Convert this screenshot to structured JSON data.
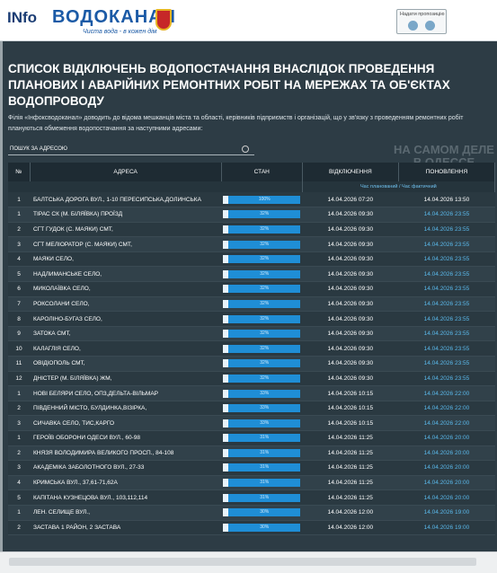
{
  "header": {
    "logo": "INfo",
    "brand": "ВОДОКАНАЛ",
    "slogan": "Чиста вода - в кожен дім",
    "offer": "Надати пропозицію"
  },
  "title": "СПИСОК ВІДКЛЮЧЕНЬ ВОДОПОСТАЧАННЯ ВНАСЛІДОК ПРОВЕДЕННЯ ПЛАНОВИХ І АВАРІЙНИХ РЕМОНТНИХ РОБІТ НА МЕРЕЖАХ ТА ОБ'ЄКТАХ ВОДОПРОВОДУ",
  "intro": "Філія «Інфоксводоканал» доводить до відома мешканців міста та області, керівників підприємств і організацій, що у зв'язку з проведенням ремонтних робіт плануються обмеження водопостачання за наступними адресами:",
  "search": "ПОШУК ЗА АДРЕСОЮ",
  "watermark": "НА САМОМ ДЕЛЕ В ОДЕССЕ",
  "table": {
    "columns": [
      "№",
      "АДРЕСА",
      "СТАН",
      "ВІДКЛЮЧЕННЯ",
      "ПОНОВЛЕННЯ"
    ],
    "subheader": "Час планований / Час фактичний",
    "rows": [
      [
        "1",
        "БАЛТСЬКА ДОРОГА ВУЛ., 1-10 ПЕРЕСИПСЬКА,ДОЛИНСЬКА",
        "100%",
        "14.04.2026 07:20",
        "14.04.2026 13:50"
      ],
      [
        "1",
        "ТІРАС СК (М. БІЛЯЇВКА) ПРОЇЗД",
        "32%",
        "14.04.2026 09:30",
        "14.04.2026 23:55"
      ],
      [
        "2",
        "СГТ ГУДОК (С. МАЯКИ) СМТ,",
        "32%",
        "14.04.2026 09:30",
        "14.04.2026 23:55"
      ],
      [
        "3",
        "СГТ МЕЛІОРАТОР (С. МАЯКИ) СМТ,",
        "32%",
        "14.04.2026 09:30",
        "14.04.2026 23:55"
      ],
      [
        "4",
        "МАЯКИ СЕЛО,",
        "32%",
        "14.04.2026 09:30",
        "14.04.2026 23:55"
      ],
      [
        "5",
        "НАДЛИМАНСЬКЕ СЕЛО,",
        "32%",
        "14.04.2026 09:30",
        "14.04.2026 23:55"
      ],
      [
        "6",
        "МИКОЛАЇВКА СЕЛО,",
        "32%",
        "14.04.2026 09:30",
        "14.04.2026 23:55"
      ],
      [
        "7",
        "РОКСОЛАНИ СЕЛО,",
        "32%",
        "14.04.2026 09:30",
        "14.04.2026 23:55"
      ],
      [
        "8",
        "КАРОЛІНО-БУГАЗ СЕЛО,",
        "32%",
        "14.04.2026 09:30",
        "14.04.2026 23:55"
      ],
      [
        "9",
        "ЗАТОКА СМТ,",
        "32%",
        "14.04.2026 09:30",
        "14.04.2026 23:55"
      ],
      [
        "10",
        "КАЛАГЛІЯ СЕЛО,",
        "32%",
        "14.04.2026 09:30",
        "14.04.2026 23:55"
      ],
      [
        "11",
        "ОВІДІОПОЛЬ СМТ,",
        "32%",
        "14.04.2026 09:30",
        "14.04.2026 23:55"
      ],
      [
        "12",
        "ДНІСТЕР (М. БІЛЯЇВКА) ЖМ,",
        "32%",
        "14.04.2026 09:30",
        "14.04.2026 23:55"
      ],
      [
        "1",
        "НОВІ БЕЛЯРИ СЕЛО, ОПЗ,ДЕЛЬТА-ВІЛЬМАР",
        "33%",
        "14.04.2026 10:15",
        "14.04.2026 22:00"
      ],
      [
        "2",
        "ПІВДЕННИЙ МІСТО, БУЛДИНКА,ВІЗІРКА,",
        "33%",
        "14.04.2026 10:15",
        "14.04.2026 22:00"
      ],
      [
        "3",
        "СИЧАВКА СЕЛО, ТИС,КАРГО",
        "33%",
        "14.04.2026 10:15",
        "14.04.2026 22:00"
      ],
      [
        "1",
        "ГЕРОЇВ ОБОРОНИ ОДЕСИ ВУЛ., 60-98",
        "31%",
        "14.04.2026 11:25",
        "14.04.2026 20:00"
      ],
      [
        "2",
        "КНЯЗЯ ВОЛОДИМИРА ВЕЛИКОГО ПРОСП., 84-108",
        "31%",
        "14.04.2026 11:25",
        "14.04.2026 20:00"
      ],
      [
        "3",
        "АКАДЕМІКА ЗАБОЛОТНОГО ВУЛ., 27-33",
        "31%",
        "14.04.2026 11:25",
        "14.04.2026 20:00"
      ],
      [
        "4",
        "КРИМСЬКА ВУЛ., 37,61-71,62А",
        "31%",
        "14.04.2026 11:25",
        "14.04.2026 20:00"
      ],
      [
        "5",
        "КАПІТАНА КУЗНЕЦОВА ВУЛ., 103,112,114",
        "31%",
        "14.04.2026 11:25",
        "14.04.2026 20:00"
      ],
      [
        "1",
        "ЛЕН. СЕЛИЩЕ ВУЛ.,",
        "30%",
        "14.04.2026 12:00",
        "14.04.2026 19:00"
      ],
      [
        "2",
        "ЗАСТАВА 1 РАЙОН, 2 ЗАСТАВА",
        "30%",
        "14.04.2026 12:00",
        "14.04.2026 19:00"
      ]
    ]
  }
}
